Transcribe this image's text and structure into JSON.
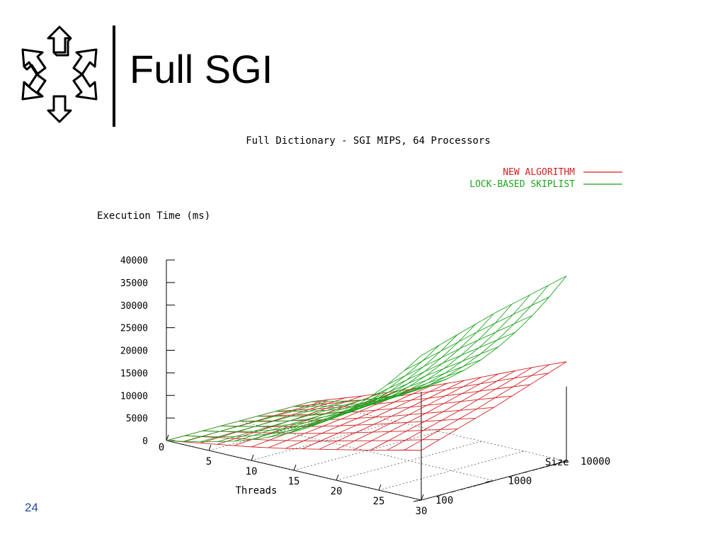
{
  "slide": {
    "title": "Full SGI",
    "page_number": "24"
  },
  "chart_data": {
    "type": "surface3d",
    "title": "Full Dictionary - SGI MIPS, 64 Processors",
    "zlabel": "Execution Time (ms)",
    "xlabel": "Threads",
    "ylabel": "Size",
    "zlim": [
      0,
      40000
    ],
    "zticks": [
      "40000",
      "35000",
      "30000",
      "25000",
      "20000",
      "15000",
      "10000",
      "5000",
      "0"
    ],
    "xticks": [
      "0",
      "5",
      "10",
      "15",
      "20",
      "25",
      "30"
    ],
    "yticks": [
      "100",
      "1000",
      "10000"
    ],
    "y_scale": "log",
    "legend_position": "top-right",
    "threads": [
      0,
      2,
      4,
      6,
      8,
      10,
      12,
      14,
      16,
      18,
      20,
      22,
      24,
      26,
      28,
      30
    ],
    "sizes": [
      100,
      1000,
      10000
    ],
    "series": [
      {
        "name": "NEW ALGORITHM",
        "color": "#d42020",
        "values": [
          [
            0,
            600,
            1200,
            1800,
            2400,
            3000,
            3700,
            4400,
            5200,
            6000,
            6800,
            7600,
            8400,
            9300,
            10200,
            11000
          ],
          [
            0,
            900,
            1800,
            2700,
            3700,
            4700,
            5700,
            6800,
            7900,
            9000,
            10200,
            11400,
            12600,
            13800,
            15000,
            16200
          ],
          [
            0,
            1300,
            2600,
            3900,
            5300,
            6700,
            8100,
            9600,
            11100,
            12600,
            14200,
            15800,
            17400,
            19000,
            20500,
            22000
          ]
        ]
      },
      {
        "name": "LOCK-BASED SKIPLIST",
        "color": "#1ea51e",
        "values": [
          [
            0,
            700,
            1500,
            2400,
            3400,
            4600,
            6000,
            7600,
            9500,
            11700,
            14200,
            17000,
            20200,
            23800,
            27800,
            32000
          ],
          [
            0,
            800,
            1700,
            2700,
            3900,
            5300,
            6900,
            8800,
            11000,
            13500,
            16400,
            19700,
            23400,
            27500,
            32000,
            37000
          ],
          [
            0,
            900,
            1900,
            3000,
            4300,
            5800,
            7600,
            9700,
            12100,
            14900,
            18100,
            21800,
            25900,
            30500,
            35500,
            41000
          ]
        ]
      }
    ]
  }
}
